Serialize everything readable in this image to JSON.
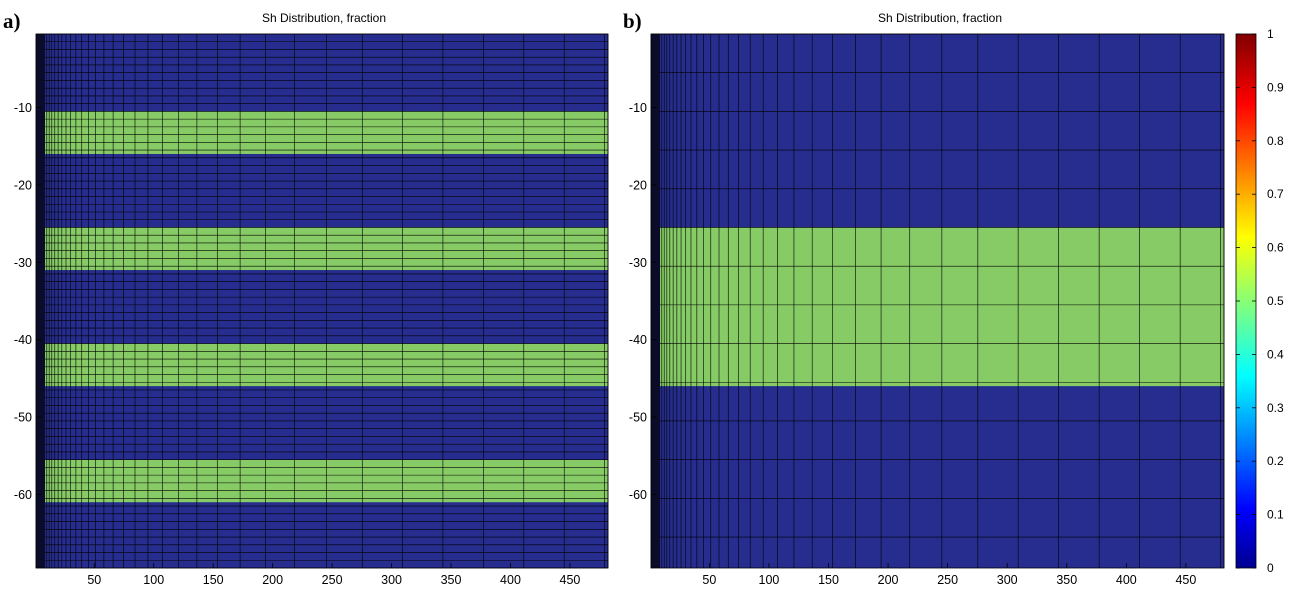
{
  "chart_data": [
    {
      "type": "heatmap",
      "panel_label": "a)",
      "title": "Sh Distribution, fraction",
      "xlabel": "",
      "ylabel": "",
      "xlim": [
        1,
        482
      ],
      "ylim": [
        -69.5,
        -0.5
      ],
      "x_ticks": [
        50,
        100,
        150,
        200,
        250,
        300,
        350,
        400,
        450
      ],
      "y_ticks": [
        -10,
        -20,
        -30,
        -40,
        -50,
        -60
      ],
      "background_value": 0.0,
      "bands": [
        {
          "y_top": -10.5,
          "y_bottom": -16.0,
          "value": 0.5
        },
        {
          "y_top": -25.5,
          "y_bottom": -31.0,
          "value": 0.5
        },
        {
          "y_top": -40.5,
          "y_bottom": -46.0,
          "value": 0.5
        },
        {
          "y_top": -55.5,
          "y_bottom": -61.0,
          "value": 0.5
        }
      ],
      "layer_spacing": 1,
      "grid": true
    },
    {
      "type": "heatmap",
      "panel_label": "b)",
      "title": "Sh Distribution, fraction",
      "xlabel": "",
      "ylabel": "",
      "xlim": [
        1,
        482
      ],
      "ylim": [
        -69.5,
        -0.5
      ],
      "x_ticks": [
        50,
        100,
        150,
        200,
        250,
        300,
        350,
        400,
        450
      ],
      "y_ticks": [
        -10,
        -20,
        -30,
        -40,
        -50,
        -60
      ],
      "background_value": 0.0,
      "bands": [
        {
          "y_top": -25.5,
          "y_bottom": -46.0,
          "value": 0.5
        }
      ],
      "layer_spacing": 5,
      "grid": true
    }
  ],
  "colorbar": {
    "min": 0,
    "max": 1,
    "ticks": [
      "0",
      "0.1",
      "0.2",
      "0.3",
      "0.4",
      "0.5",
      "0.6",
      "0.7",
      "0.8",
      "0.9",
      "1"
    ],
    "colormap": "jet"
  },
  "colors": {
    "background_cell": "#262d8e",
    "band_cell": "#86cb66",
    "grid_line": "#000000"
  }
}
